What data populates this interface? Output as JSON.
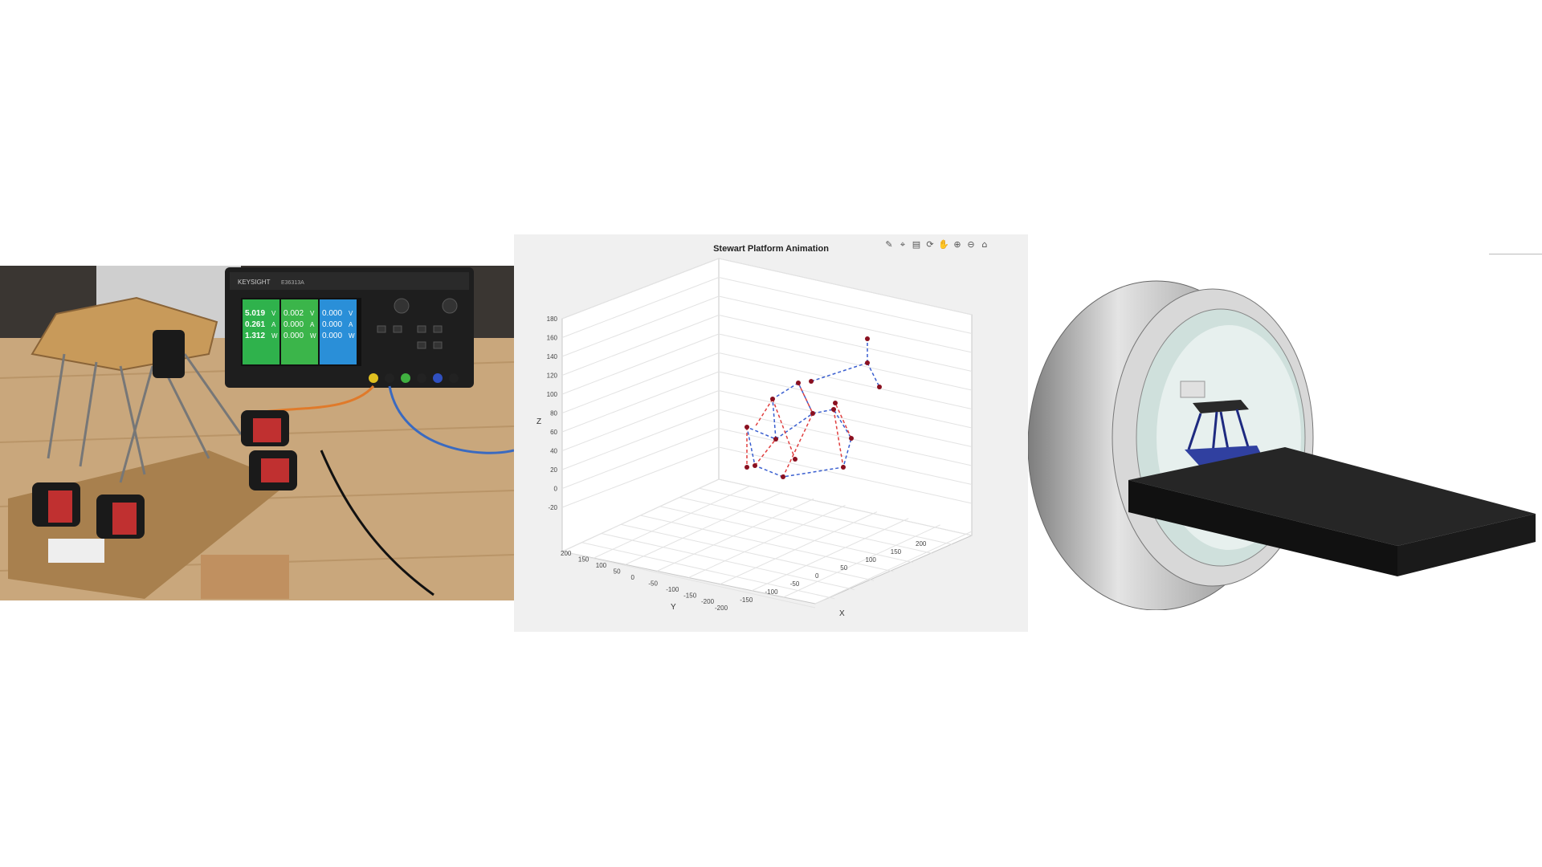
{
  "photo": {
    "psu_brand": "KEYSIGHT",
    "psu_model": "E36313A",
    "channels": [
      {
        "voltage": "5.019",
        "v_unit": "V",
        "current": "0.261",
        "a_unit": "A",
        "power": "1.312",
        "w_unit": "W",
        "color": "#2fb24c"
      },
      {
        "voltage": "0.002",
        "v_unit": "V",
        "current": "0.000",
        "a_unit": "A",
        "power": "0.000",
        "w_unit": "W",
        "color": "#3bb54a"
      },
      {
        "voltage": "0.000",
        "v_unit": "V",
        "current": "0.000",
        "a_unit": "A",
        "power": "0.000",
        "w_unit": "W",
        "color": "#2a8fd8"
      }
    ]
  },
  "plot": {
    "title": "Stewart Platform Animation",
    "toolbar_icons": [
      "brush-icon",
      "data-tip-icon",
      "legend-icon",
      "rotate-3d-icon",
      "pan-icon",
      "zoom-in-icon",
      "zoom-out-icon",
      "home-icon"
    ],
    "z_ticks": [
      "180",
      "160",
      "140",
      "120",
      "100",
      "80",
      "60",
      "40",
      "20",
      "0",
      "-20"
    ],
    "y_ticks": [
      "200",
      "150",
      "100",
      "50",
      "0",
      "-50",
      "-100",
      "-150",
      "-200"
    ],
    "x_ticks": [
      "-200",
      "-150",
      "-100",
      "-50",
      "0",
      "50",
      "100",
      "150",
      "200"
    ],
    "xlabel": "X",
    "ylabel": "Y",
    "zlabel": "Z",
    "colors": {
      "base_links": "#3a5fd0",
      "legs": "#e04040",
      "joints": "#8a1020",
      "grid": "#dcdcdc"
    }
  },
  "cad": {
    "colors": {
      "ring": "#b8b8b8",
      "table": "#2a2a2a",
      "platform": "#3040a0"
    }
  }
}
